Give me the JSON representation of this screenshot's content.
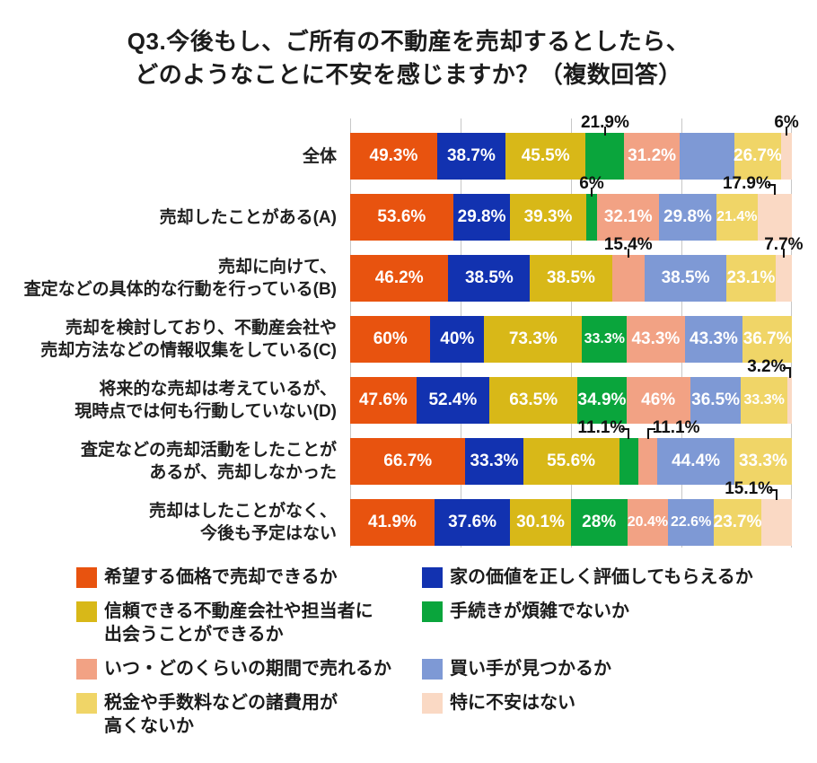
{
  "title": {
    "line1": "Q3.今後もし、ご所有の不動産を売却するとしたら、",
    "line2": "どのようなことに不安を感じますか？（複数回答）"
  },
  "chart_data": {
    "type": "bar",
    "orientation": "horizontal",
    "stacking": "row-normalized (multiple answers, each row scaled to full width)",
    "unit": "%",
    "grid": "vertical gridlines at 0/25/50/75/100% of bar width",
    "legend_position": "bottom, two columns",
    "title": "Q3.今後もし、ご所有の不動産を売却するとしたら、どのようなことに不安を感じますか？（複数回答）",
    "x_axis": {
      "gridlines_percent": [
        0,
        25,
        50,
        75,
        100
      ]
    },
    "series": [
      {
        "name": "希望する価格で売却できるか",
        "color": "#E8530F"
      },
      {
        "name": "家の価値を正しく評価してもらえるか",
        "color": "#1232B0"
      },
      {
        "name": "信頼できる不動産会社や担当者に出会うことができるか",
        "color": "#D8B818",
        "lines": [
          "信頼できる不動産会社や担当者に",
          "出会うことができるか"
        ]
      },
      {
        "name": "手続きが煩雑でないか",
        "color": "#0AA53C"
      },
      {
        "name": "いつ・どのくらいの期間で売れるか",
        "color": "#F2A284"
      },
      {
        "name": "買い手が見つかるか",
        "color": "#7E99D5"
      },
      {
        "name": "税金や手数料などの諸費用が高くないか",
        "color": "#F0D567",
        "lines": [
          "税金や手数料などの諸費用が",
          "高くないか"
        ]
      },
      {
        "name": "特に不安はない",
        "color": "#FAD9C4"
      }
    ],
    "rows": [
      {
        "category": [
          "全体"
        ],
        "segments": [
          {
            "series": 0,
            "value": 49.3,
            "label": "49.3%",
            "label_pos": "in"
          },
          {
            "series": 1,
            "value": 38.7,
            "label": "38.7%",
            "label_pos": "in"
          },
          {
            "series": 2,
            "value": 45.5,
            "label": "45.5%",
            "label_pos": "in"
          },
          {
            "series": 3,
            "value": 21.9,
            "label": "21.9%",
            "label_pos": "above",
            "connector": "tick"
          },
          {
            "series": 4,
            "value": 31.2,
            "label": "31.2%",
            "label_pos": "in"
          },
          {
            "series": 5,
            "value": 31.0,
            "label": "",
            "label_pos": "none",
            "unlabeled": true
          },
          {
            "series": 6,
            "value": 26.7,
            "label": "26.7%",
            "label_pos": "in"
          },
          {
            "series": 7,
            "value": 6.0,
            "label": "6%",
            "label_pos": "above",
            "connector": "tick"
          }
        ]
      },
      {
        "category": [
          "売却したことがある(A)"
        ],
        "segments": [
          {
            "series": 0,
            "value": 53.6,
            "label": "53.6%",
            "label_pos": "in"
          },
          {
            "series": 1,
            "value": 29.8,
            "label": "29.8%",
            "label_pos": "in"
          },
          {
            "series": 2,
            "value": 39.3,
            "label": "39.3%",
            "label_pos": "in"
          },
          {
            "series": 3,
            "value": 6.0,
            "label": "6%",
            "label_pos": "above",
            "connector": "tick"
          },
          {
            "series": 4,
            "value": 32.1,
            "label": "32.1%",
            "label_pos": "in"
          },
          {
            "series": 5,
            "value": 29.8,
            "label": "29.8%",
            "label_pos": "in"
          },
          {
            "series": 6,
            "value": 21.4,
            "label": "21.4%",
            "label_pos": "in"
          },
          {
            "series": 7,
            "value": 17.9,
            "label": "17.9%",
            "label_pos": "above",
            "connector": "elbow-left"
          }
        ]
      },
      {
        "category": [
          "売却に向けて、",
          "査定などの具体的な行動を行っている(B)"
        ],
        "segments": [
          {
            "series": 0,
            "value": 46.2,
            "label": "46.2%",
            "label_pos": "in"
          },
          {
            "series": 1,
            "value": 38.5,
            "label": "38.5%",
            "label_pos": "in"
          },
          {
            "series": 2,
            "value": 38.5,
            "label": "38.5%",
            "label_pos": "in"
          },
          {
            "series": 4,
            "value": 15.4,
            "label": "15.4%",
            "label_pos": "above",
            "connector": "tick"
          },
          {
            "series": 5,
            "value": 38.5,
            "label": "38.5%",
            "label_pos": "in"
          },
          {
            "series": 6,
            "value": 23.1,
            "label": "23.1%",
            "label_pos": "in"
          },
          {
            "series": 7,
            "value": 7.7,
            "label": "7.7%",
            "label_pos": "above",
            "connector": "tick"
          }
        ]
      },
      {
        "category": [
          "売却を検討しており、不動産会社や",
          "売却方法などの情報収集をしている(C)"
        ],
        "segments": [
          {
            "series": 0,
            "value": 60.0,
            "label": "60%",
            "label_pos": "in"
          },
          {
            "series": 1,
            "value": 40.0,
            "label": "40%",
            "label_pos": "in"
          },
          {
            "series": 2,
            "value": 73.3,
            "label": "73.3%",
            "label_pos": "in"
          },
          {
            "series": 3,
            "value": 33.3,
            "label": "33.3%",
            "label_pos": "in"
          },
          {
            "series": 4,
            "value": 43.3,
            "label": "43.3%",
            "label_pos": "in"
          },
          {
            "series": 5,
            "value": 43.3,
            "label": "43.3%",
            "label_pos": "in"
          },
          {
            "series": 6,
            "value": 36.7,
            "label": "36.7%",
            "label_pos": "in"
          }
        ]
      },
      {
        "category": [
          "将来的な売却は考えているが、",
          "現時点では何も行動していない(D)"
        ],
        "segments": [
          {
            "series": 0,
            "value": 47.6,
            "label": "47.6%",
            "label_pos": "in"
          },
          {
            "series": 1,
            "value": 52.4,
            "label": "52.4%",
            "label_pos": "in"
          },
          {
            "series": 2,
            "value": 63.5,
            "label": "63.5%",
            "label_pos": "in"
          },
          {
            "series": 3,
            "value": 34.9,
            "label": "34.9%",
            "label_pos": "in"
          },
          {
            "series": 4,
            "value": 46.0,
            "label": "46%",
            "label_pos": "in"
          },
          {
            "series": 5,
            "value": 36.5,
            "label": "36.5%",
            "label_pos": "in"
          },
          {
            "series": 6,
            "value": 33.3,
            "label": "33.3%",
            "label_pos": "in"
          },
          {
            "series": 7,
            "value": 3.2,
            "label": "3.2%",
            "label_pos": "above",
            "connector": "elbow-left"
          }
        ]
      },
      {
        "category": [
          "査定などの売却活動をしたことが",
          "あるが、売却しなかった"
        ],
        "segments": [
          {
            "series": 0,
            "value": 66.7,
            "label": "66.7%",
            "label_pos": "in"
          },
          {
            "series": 1,
            "value": 33.3,
            "label": "33.3%",
            "label_pos": "in"
          },
          {
            "series": 2,
            "value": 55.6,
            "label": "55.6%",
            "label_pos": "in"
          },
          {
            "series": 3,
            "value": 11.1,
            "label": "11.1%",
            "label_pos": "above",
            "connector": "elbow-left"
          },
          {
            "series": 4,
            "value": 11.1,
            "label": "11.1%",
            "label_pos": "above",
            "connector": "elbow-right"
          },
          {
            "series": 5,
            "value": 44.4,
            "label": "44.4%",
            "label_pos": "in"
          },
          {
            "series": 6,
            "value": 33.3,
            "label": "33.3%",
            "label_pos": "in"
          }
        ]
      },
      {
        "category": [
          "売却はしたことがなく、",
          "今後も予定はない"
        ],
        "segments": [
          {
            "series": 0,
            "value": 41.9,
            "label": "41.9%",
            "label_pos": "in"
          },
          {
            "series": 1,
            "value": 37.6,
            "label": "37.6%",
            "label_pos": "in"
          },
          {
            "series": 2,
            "value": 30.1,
            "label": "30.1%",
            "label_pos": "in"
          },
          {
            "series": 3,
            "value": 28.0,
            "label": "28%",
            "label_pos": "in"
          },
          {
            "series": 4,
            "value": 20.4,
            "label": "20.4%",
            "label_pos": "in"
          },
          {
            "series": 5,
            "value": 22.6,
            "label": "22.6%",
            "label_pos": "in"
          },
          {
            "series": 6,
            "value": 23.7,
            "label": "23.7%",
            "label_pos": "in"
          },
          {
            "series": 7,
            "value": 15.1,
            "label": "15.1%",
            "label_pos": "above",
            "connector": "elbow-left"
          }
        ]
      }
    ]
  }
}
